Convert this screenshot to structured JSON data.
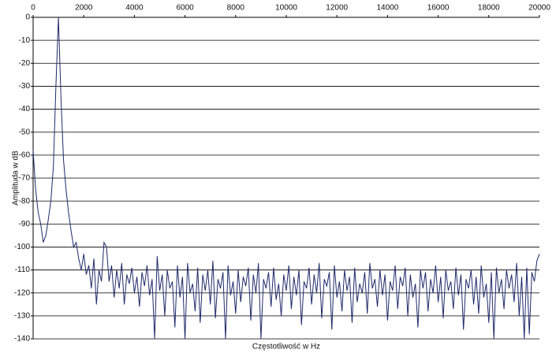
{
  "chart_data": {
    "type": "line",
    "x_label": "Częstotliwość w Hz",
    "y_label": "Amplituda w dB",
    "color": "#1f2a6b",
    "grid": true,
    "xlim": [
      0,
      20000
    ],
    "xticks": [
      0,
      2000,
      4000,
      6000,
      8000,
      10000,
      12000,
      14000,
      16000,
      18000,
      20000
    ],
    "ylim": [
      -140,
      0
    ],
    "yticks": [
      0,
      -10,
      -20,
      -30,
      -40,
      -50,
      -60,
      -70,
      -80,
      -90,
      -100,
      -110,
      -120,
      -130,
      -140
    ],
    "x": [
      0,
      100,
      200,
      300,
      400,
      500,
      600,
      700,
      800,
      900,
      1000,
      1100,
      1200,
      1300,
      1400,
      1500,
      1600,
      1700,
      1800,
      1900,
      2000,
      2100,
      2200,
      2300,
      2400,
      2500,
      2600,
      2700,
      2800,
      2900,
      3000,
      3100,
      3200,
      3300,
      3400,
      3500,
      3600,
      3700,
      3800,
      3900,
      4000,
      4100,
      4200,
      4300,
      4400,
      4500,
      4600,
      4700,
      4800,
      4900,
      5000,
      5100,
      5200,
      5300,
      5400,
      5500,
      5600,
      5700,
      5800,
      5900,
      6000,
      6100,
      6200,
      6300,
      6400,
      6500,
      6600,
      6700,
      6800,
      6900,
      7000,
      7100,
      7200,
      7300,
      7400,
      7500,
      7600,
      7700,
      7800,
      7900,
      8000,
      8100,
      8200,
      8300,
      8400,
      8500,
      8600,
      8700,
      8800,
      8900,
      9000,
      9100,
      9200,
      9300,
      9400,
      9500,
      9600,
      9700,
      9800,
      9900,
      10000,
      10100,
      10200,
      10300,
      10400,
      10500,
      10600,
      10700,
      10800,
      10900,
      11000,
      11100,
      11200,
      11300,
      11400,
      11500,
      11600,
      11700,
      11800,
      11900,
      12000,
      12100,
      12200,
      12300,
      12400,
      12500,
      12600,
      12700,
      12800,
      12900,
      13000,
      13100,
      13200,
      13300,
      13400,
      13500,
      13600,
      13700,
      13800,
      13900,
      14000,
      14100,
      14200,
      14300,
      14400,
      14500,
      14600,
      14700,
      14800,
      14900,
      15000,
      15100,
      15200,
      15300,
      15400,
      15500,
      15600,
      15700,
      15800,
      15900,
      16000,
      16100,
      16200,
      16300,
      16400,
      16500,
      16600,
      16700,
      16800,
      16900,
      17000,
      17100,
      17200,
      17300,
      17400,
      17500,
      17600,
      17700,
      17800,
      17900,
      18000,
      18100,
      18200,
      18300,
      18400,
      18500,
      18600,
      18700,
      18800,
      18900,
      19000,
      19100,
      19200,
      19300,
      19400,
      19500,
      19600,
      19700,
      19800,
      19900,
      20000
    ],
    "values": [
      -58,
      -75,
      -85,
      -90,
      -98,
      -95,
      -88,
      -80,
      -65,
      -30,
      0,
      -35,
      -62,
      -75,
      -85,
      -93,
      -100,
      -98,
      -105,
      -110,
      -103,
      -112,
      -108,
      -118,
      -105,
      -125,
      -110,
      -115,
      -98,
      -100,
      -115,
      -108,
      -122,
      -110,
      -118,
      -107,
      -125,
      -112,
      -116,
      -109,
      -120,
      -113,
      -126,
      -111,
      -117,
      -108,
      -121,
      -114,
      -140,
      -104,
      -119,
      -112,
      -130,
      -110,
      -118,
      -115,
      -135,
      -108,
      -122,
      -113,
      -140,
      -107,
      -120,
      -116,
      -128,
      -109,
      -133,
      -112,
      -119,
      -110,
      -125,
      -106,
      -131,
      -114,
      -118,
      -111,
      -140,
      -108,
      -121,
      -115,
      -129,
      -110,
      -124,
      -113,
      -117,
      -109,
      -132,
      -112,
      -120,
      -107,
      -140,
      -114,
      -118,
      -111,
      -126,
      -109,
      -123,
      -116,
      -130,
      -112,
      -119,
      -108,
      -127,
      -113,
      -121,
      -110,
      -134,
      -115,
      -118,
      -109,
      -125,
      -112,
      -120,
      -107,
      -131,
      -114,
      -117,
      -111,
      -136,
      -108,
      -122,
      -115,
      -128,
      -110,
      -119,
      -113,
      -133,
      -109,
      -124,
      -116,
      -120,
      -111,
      -129,
      -107,
      -118,
      -114,
      -126,
      -110,
      -121,
      -112,
      -132,
      -115,
      -119,
      -108,
      -127,
      -113,
      -117,
      -109,
      -130,
      -112,
      -122,
      -116,
      -135,
      -110,
      -118,
      -111,
      -128,
      -114,
      -120,
      -108,
      -124,
      -113,
      -131,
      -110,
      -119,
      -115,
      -127,
      -109,
      -121,
      -112,
      -136,
      -114,
      -118,
      -110,
      -125,
      -113,
      -129,
      -108,
      -122,
      -116,
      -133,
      -111,
      -140,
      -109,
      -120,
      -114,
      -127,
      -110,
      -118,
      -112,
      -124,
      -107,
      -130,
      -113,
      -140,
      -109,
      -138,
      -111,
      -115,
      -106,
      -103
    ]
  }
}
